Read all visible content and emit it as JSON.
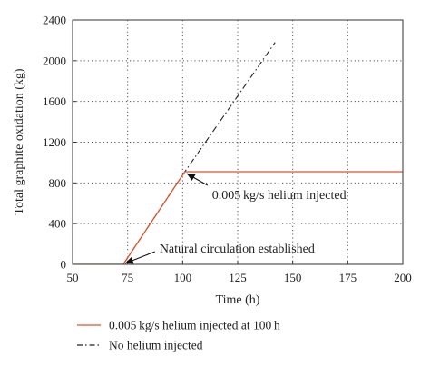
{
  "chart_data": {
    "type": "line",
    "xlabel": "Time (h)",
    "ylabel": "Total graphite oxidation (kg)",
    "xlim": [
      50,
      200
    ],
    "ylim": [
      0,
      2400
    ],
    "x_ticks": [
      50,
      75,
      100,
      125,
      150,
      175,
      200
    ],
    "y_ticks": [
      0,
      400,
      800,
      1200,
      1600,
      2000,
      2400
    ],
    "grid": "dotted",
    "series": [
      {
        "name": "0.005 kg/s helium injected at 100 h",
        "style": "solid",
        "color": "#e0522b",
        "x": [
          50,
          70,
          73,
          101,
          200
        ],
        "y": [
          0,
          0,
          0,
          910,
          910
        ]
      },
      {
        "name": "No helium injected",
        "style": "dash-dot",
        "color": "#222222",
        "x": [
          50,
          70,
          73,
          101,
          142
        ],
        "y": [
          0,
          0,
          0,
          910,
          2180
        ]
      }
    ],
    "annotations": [
      {
        "text": "0.005 kg/s helium injected",
        "x": 101,
        "y": 910
      },
      {
        "text": "Natural circulation established",
        "x": 73,
        "y": 0
      }
    ],
    "legend_position": "bottom"
  }
}
